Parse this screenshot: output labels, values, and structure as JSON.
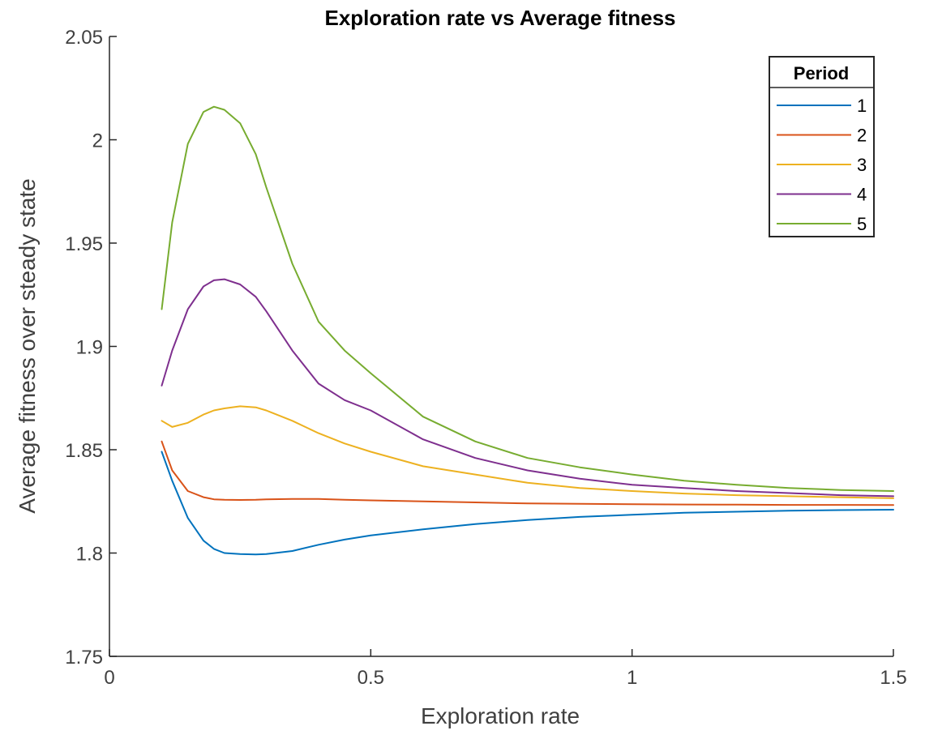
{
  "chart_data": {
    "type": "line",
    "title": "Exploration rate vs Average fitness",
    "xlabel": "Exploration rate",
    "ylabel": "Average fitness over steady state",
    "xlim": [
      0,
      1.5
    ],
    "ylim": [
      1.75,
      2.05
    ],
    "xticks": [
      0,
      0.5,
      1,
      1.5
    ],
    "xtick_labels": [
      "0",
      "0.5",
      "1",
      "1.5"
    ],
    "yticks": [
      1.75,
      1.8,
      1.85,
      1.9,
      1.95,
      2.0,
      2.05
    ],
    "ytick_labels": [
      "1.75",
      "1.8",
      "1.85",
      "1.9",
      "1.95",
      "2",
      "2.05"
    ],
    "grid": false,
    "legend_title": "Period",
    "legend_placement": "top-right",
    "x": [
      0.1,
      0.12,
      0.15,
      0.18,
      0.2,
      0.22,
      0.25,
      0.28,
      0.3,
      0.35,
      0.4,
      0.45,
      0.5,
      0.6,
      0.7,
      0.8,
      0.9,
      1.0,
      1.1,
      1.2,
      1.3,
      1.4,
      1.5
    ],
    "series": [
      {
        "name": "1",
        "color": "#0072BD",
        "values": [
          1.849,
          1.835,
          1.817,
          1.806,
          1.802,
          1.8,
          1.7995,
          1.7993,
          1.7995,
          1.801,
          1.804,
          1.8065,
          1.8085,
          1.8115,
          1.814,
          1.816,
          1.8175,
          1.8185,
          1.8195,
          1.82,
          1.8205,
          1.8208,
          1.821
        ]
      },
      {
        "name": "2",
        "color": "#D95319",
        "values": [
          1.854,
          1.84,
          1.83,
          1.827,
          1.826,
          1.8258,
          1.8257,
          1.8258,
          1.826,
          1.8262,
          1.8262,
          1.8258,
          1.8255,
          1.825,
          1.8245,
          1.824,
          1.8238,
          1.8236,
          1.8235,
          1.8234,
          1.8233,
          1.8233,
          1.8232
        ]
      },
      {
        "name": "3",
        "color": "#EDB120",
        "values": [
          1.864,
          1.861,
          1.863,
          1.867,
          1.869,
          1.87,
          1.871,
          1.8705,
          1.869,
          1.864,
          1.858,
          1.853,
          1.849,
          1.842,
          1.838,
          1.834,
          1.8315,
          1.83,
          1.8288,
          1.828,
          1.8275,
          1.827,
          1.8265
        ]
      },
      {
        "name": "4",
        "color": "#7E2F8E",
        "values": [
          1.881,
          1.898,
          1.918,
          1.929,
          1.932,
          1.9325,
          1.93,
          1.924,
          1.917,
          1.898,
          1.882,
          1.874,
          1.869,
          1.855,
          1.846,
          1.84,
          1.836,
          1.833,
          1.8315,
          1.83,
          1.829,
          1.828,
          1.8275
        ]
      },
      {
        "name": "5",
        "color": "#77AC30",
        "values": [
          1.918,
          1.96,
          1.998,
          2.0135,
          2.016,
          2.0145,
          2.008,
          1.993,
          1.977,
          1.94,
          1.912,
          1.898,
          1.887,
          1.866,
          1.854,
          1.846,
          1.8415,
          1.838,
          1.835,
          1.833,
          1.8315,
          1.8305,
          1.83
        ]
      }
    ]
  }
}
